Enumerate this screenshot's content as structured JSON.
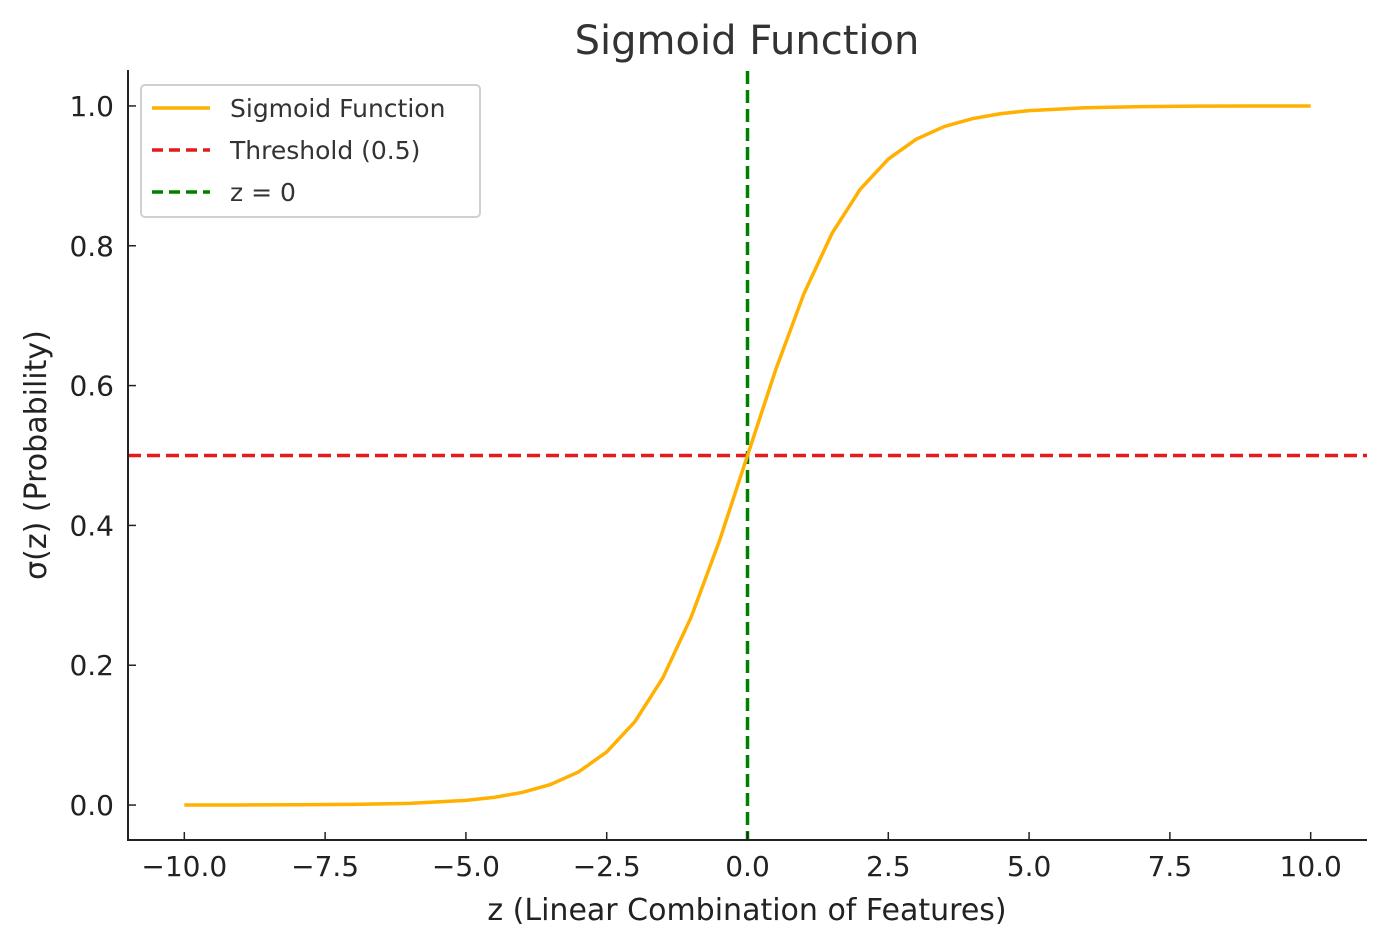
{
  "chart_data": {
    "type": "line",
    "title": "Sigmoid Function",
    "xlabel": "z (Linear Combination of Features)",
    "ylabel": "σ(z) (Probability)",
    "xlim": [
      -11.0,
      11.0
    ],
    "ylim": [
      -0.05,
      1.05
    ],
    "x_ticks": [
      -10.0,
      -7.5,
      -5.0,
      -2.5,
      0.0,
      2.5,
      5.0,
      7.5,
      10.0
    ],
    "x_tick_labels": [
      "−10.0",
      "−7.5",
      "−5.0",
      "−2.5",
      "0.0",
      "2.5",
      "5.0",
      "7.5",
      "10.0"
    ],
    "y_ticks": [
      0.0,
      0.2,
      0.4,
      0.6,
      0.8,
      1.0
    ],
    "y_tick_labels": [
      "0.0",
      "0.2",
      "0.4",
      "0.6",
      "0.8",
      "1.0"
    ],
    "grid": false,
    "legend_position": "top-left",
    "series": [
      {
        "name": "Sigmoid Function",
        "color": "#FFB000",
        "style": "solid",
        "x": [
          -10,
          -9,
          -8,
          -7,
          -6,
          -5,
          -4.5,
          -4,
          -3.5,
          -3,
          -2.5,
          -2,
          -1.5,
          -1,
          -0.5,
          0,
          0.5,
          1,
          1.5,
          2,
          2.5,
          3,
          3.5,
          4,
          4.5,
          5,
          6,
          7,
          8,
          9,
          10
        ],
        "y": [
          4.54e-05,
          0.000123,
          0.000335,
          0.000911,
          0.00247,
          0.00669,
          0.011,
          0.018,
          0.0293,
          0.0474,
          0.0759,
          0.1192,
          0.1824,
          0.2689,
          0.3775,
          0.5,
          0.6225,
          0.7311,
          0.8176,
          0.8808,
          0.9241,
          0.9526,
          0.9707,
          0.982,
          0.989,
          0.9933,
          0.9975,
          0.9991,
          0.9997,
          0.9999,
          0.99995
        ]
      }
    ],
    "reference_lines": [
      {
        "name": "Threshold (0.5)",
        "orientation": "horizontal",
        "value": 0.5,
        "color": "#E41A1C",
        "style": "dashed"
      },
      {
        "name": "z = 0",
        "orientation": "vertical",
        "value": 0,
        "color": "#008000",
        "style": "dashed"
      }
    ]
  }
}
